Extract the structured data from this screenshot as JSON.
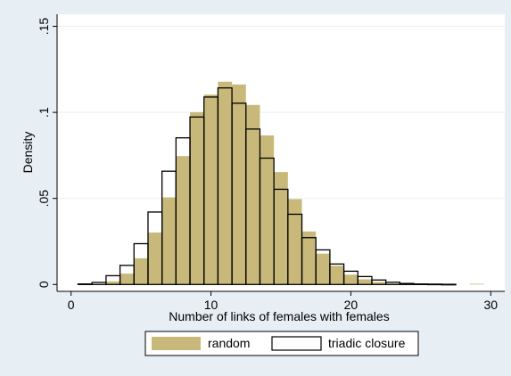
{
  "chart_data": {
    "type": "bar",
    "subtype": "overlaid-histogram",
    "xlabel": "Number of links of females with females",
    "ylabel": "Density",
    "xlim": [
      -1,
      31
    ],
    "ylim": [
      -0.004,
      0.157
    ],
    "x_ticks": [
      {
        "value": 0,
        "label": "0"
      },
      {
        "value": 10,
        "label": "10"
      },
      {
        "value": 20,
        "label": "20"
      },
      {
        "value": 30,
        "label": "30"
      }
    ],
    "y_ticks": [
      {
        "value": 0,
        "label": "0"
      },
      {
        "value": 0.05,
        "label": ".05"
      },
      {
        "value": 0.1,
        "label": ".1"
      },
      {
        "value": 0.15,
        "label": ".15"
      }
    ],
    "grid": true,
    "legend_position": "bottom",
    "bin_width": 1,
    "series": [
      {
        "name": "random",
        "style": "filled",
        "color": "#c8b97a",
        "bins": [
          [
            2,
            0.0002
          ],
          [
            3,
            0.0018
          ],
          [
            4,
            0.0063
          ],
          [
            5,
            0.0152
          ],
          [
            6,
            0.0302
          ],
          [
            7,
            0.0506
          ],
          [
            8,
            0.0746
          ],
          [
            9,
            0.1001
          ],
          [
            10,
            0.1103
          ],
          [
            11,
            0.1178
          ],
          [
            12,
            0.1162
          ],
          [
            13,
            0.1043
          ],
          [
            14,
            0.0866
          ],
          [
            15,
            0.0653
          ],
          [
            16,
            0.0496
          ],
          [
            17,
            0.0308
          ],
          [
            18,
            0.0179
          ],
          [
            19,
            0.0109
          ],
          [
            20,
            0.0057
          ],
          [
            21,
            0.003
          ],
          [
            22,
            0.0014
          ],
          [
            23,
            0.0006
          ],
          [
            24,
            0.0003
          ],
          [
            25,
            0.0001
          ],
          [
            29,
            0.0004
          ]
        ]
      },
      {
        "name": "triadic closure",
        "style": "outline",
        "color": "#000000",
        "bins": [
          [
            1,
            0.0003
          ],
          [
            2,
            0.0012
          ],
          [
            3,
            0.0051
          ],
          [
            4,
            0.0111
          ],
          [
            5,
            0.0237
          ],
          [
            6,
            0.0421
          ],
          [
            7,
            0.0658
          ],
          [
            8,
            0.0852
          ],
          [
            9,
            0.0973
          ],
          [
            10,
            0.1089
          ],
          [
            11,
            0.1142
          ],
          [
            12,
            0.1053
          ],
          [
            13,
            0.0903
          ],
          [
            14,
            0.0734
          ],
          [
            15,
            0.0553
          ],
          [
            16,
            0.0408
          ],
          [
            17,
            0.0272
          ],
          [
            18,
            0.0201
          ],
          [
            19,
            0.0119
          ],
          [
            20,
            0.0077
          ],
          [
            21,
            0.0046
          ],
          [
            22,
            0.0026
          ],
          [
            23,
            0.0013
          ],
          [
            24,
            0.0006
          ],
          [
            25,
            0.0003
          ],
          [
            26,
            0.0002
          ],
          [
            27,
            0.0001
          ]
        ]
      }
    ]
  },
  "colors": {
    "outer_background": "#e7eef4",
    "plot_background": "#ffffff",
    "grid": "#e9eff4",
    "axis": "#000000"
  }
}
